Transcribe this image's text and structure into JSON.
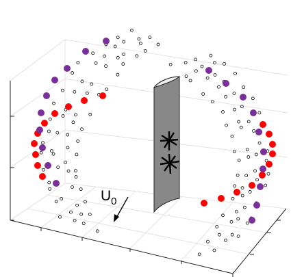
{
  "flow_label": {
    "symbol": "U",
    "subscript": "0"
  }
}
